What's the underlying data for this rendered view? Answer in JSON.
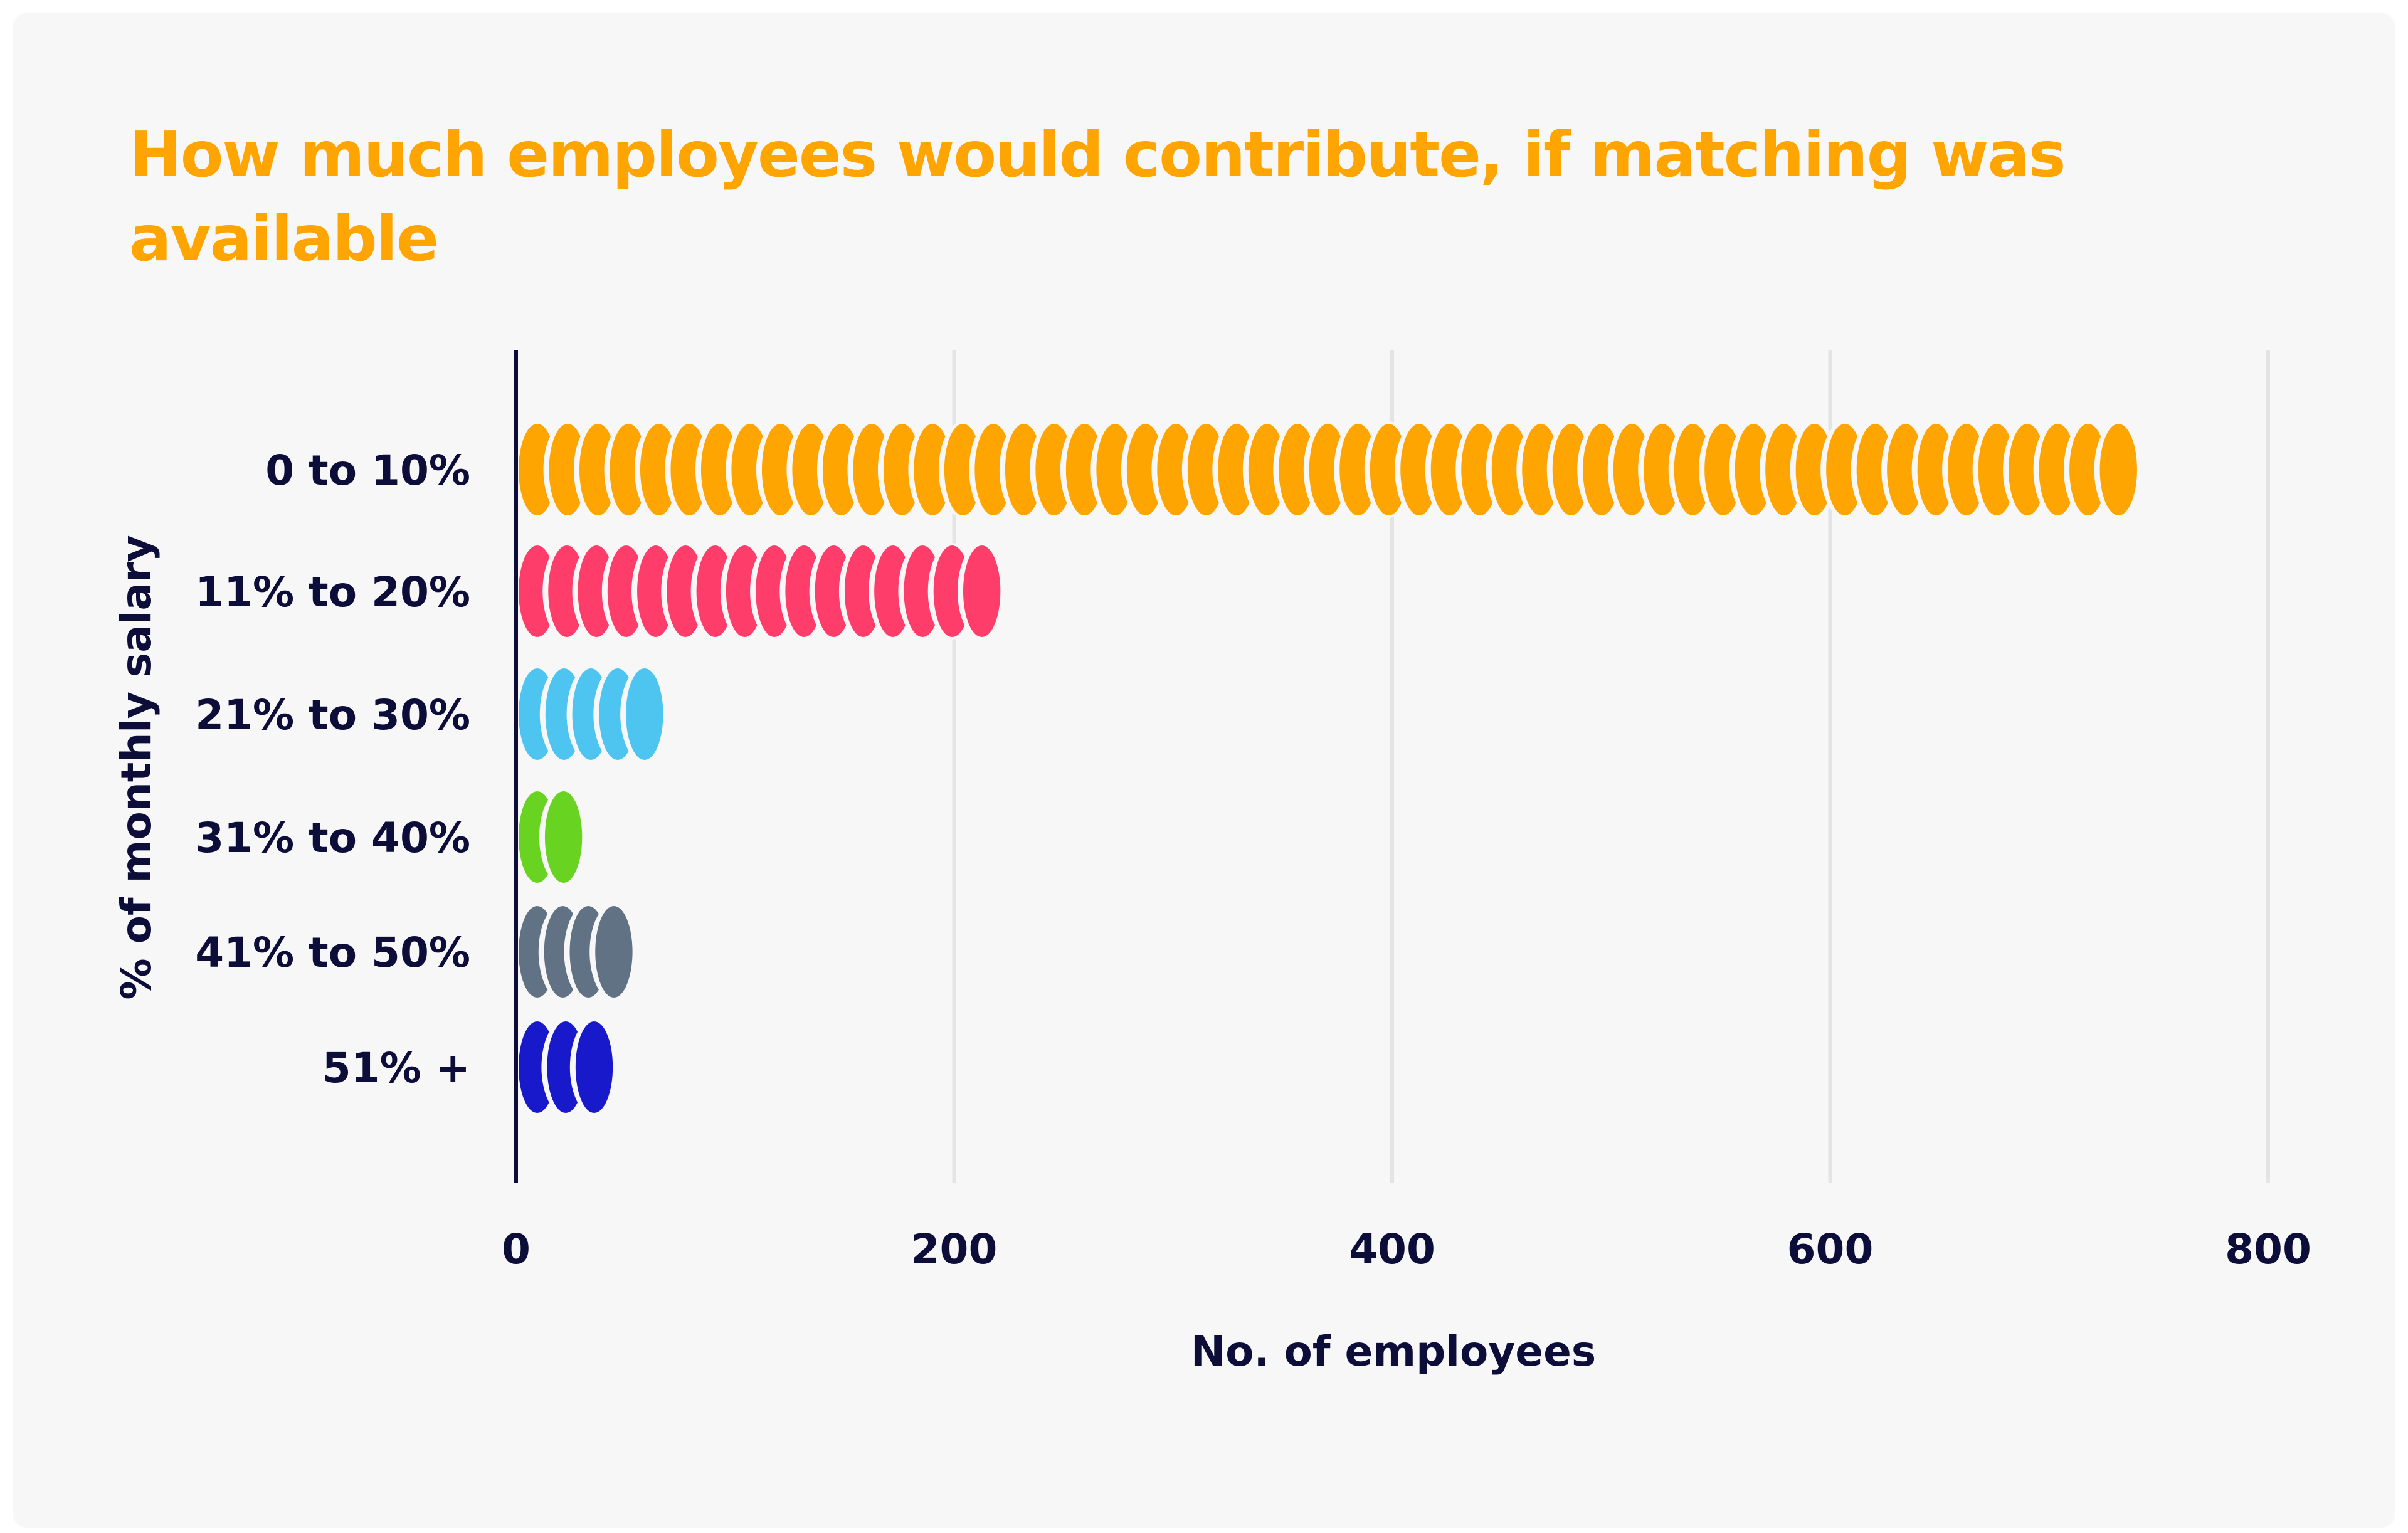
{
  "chart_data": {
    "type": "bar",
    "orientation": "horizontal",
    "title": "How much employees would contribute, if matching was available",
    "xlabel": "No. of employees",
    "ylabel": "% of monthly salary",
    "xlim": [
      0,
      800
    ],
    "xticks": [
      0,
      200,
      400,
      600,
      800
    ],
    "grid": true,
    "categories": [
      "0 to 10%",
      "11% to 20%",
      "21% to 30%",
      "31% to 40%",
      "41% to 50%",
      "51% +"
    ],
    "values": [
      739,
      220,
      66,
      29,
      52,
      43
    ],
    "colors": [
      "#FFA502",
      "#FF3D6A",
      "#4EC5F0",
      "#69D321",
      "#627285",
      "#1919CC"
    ],
    "mark_style": "stacked coins"
  }
}
